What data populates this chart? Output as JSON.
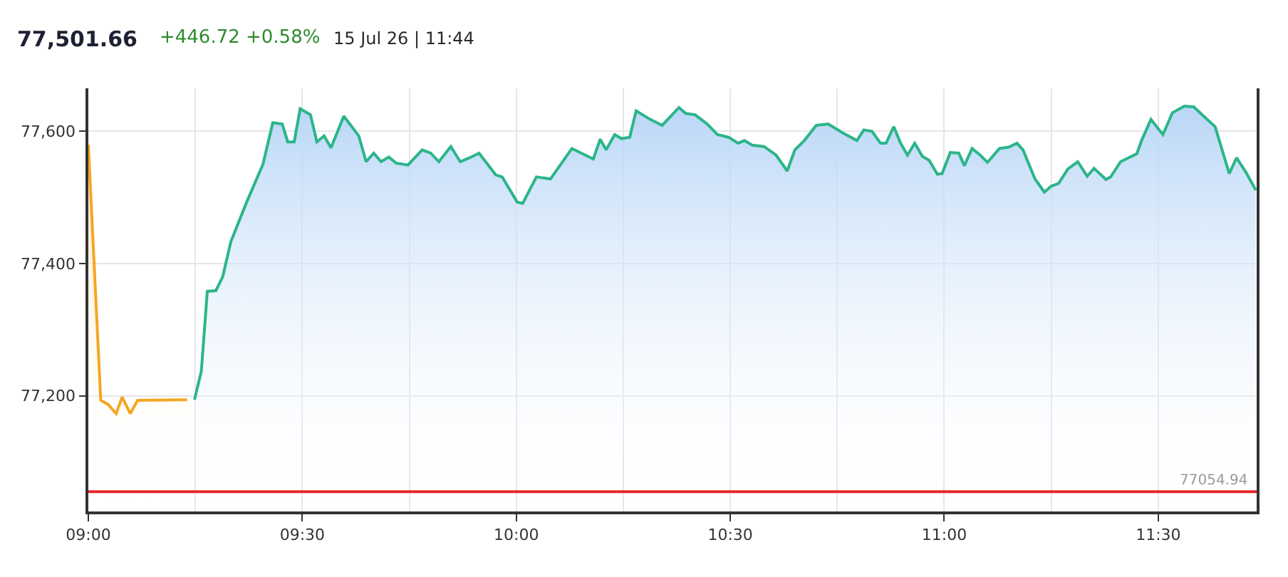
{
  "chart_data": {
    "type": "area",
    "title": "77,501.66",
    "subtitle": "+446.72 +0.58%",
    "annotations": [
      "15 Jul 26 | 11:44"
    ],
    "series": [
      {
        "color": "#f5a623",
        "x": [
          9.0,
          9.029,
          9.046,
          9.065,
          9.079,
          9.098,
          9.115,
          9.231
        ],
        "values": [
          77580,
          77193,
          77187,
          77173,
          77198,
          77173,
          77193,
          77194
        ]
      },
      {
        "color": "#2bb58a",
        "x": [
          9.248,
          9.264,
          9.278,
          9.298,
          9.314,
          9.333,
          9.37,
          9.408,
          9.431,
          9.453,
          9.466,
          9.481,
          9.495,
          9.519,
          9.534,
          9.551,
          9.567,
          9.597,
          9.632,
          9.649,
          9.667,
          9.684,
          9.702,
          9.719,
          9.747,
          9.78,
          9.8,
          9.819,
          9.847,
          9.869,
          9.891,
          9.913,
          9.952,
          9.967,
          10.002,
          10.015,
          10.047,
          10.08,
          10.13,
          10.18,
          10.196,
          10.21,
          10.23,
          10.246,
          10.265,
          10.28,
          10.313,
          10.341,
          10.38,
          10.396,
          10.418,
          10.446,
          10.47,
          10.496,
          10.518,
          10.533,
          10.551,
          10.579,
          10.607,
          10.633,
          10.651,
          10.673,
          10.701,
          10.729,
          10.762,
          10.796,
          10.812,
          10.831,
          10.851,
          10.864,
          10.882,
          10.898,
          10.914,
          10.931,
          10.949,
          10.965,
          10.984,
          10.995,
          11.014,
          11.034,
          11.047,
          11.065,
          11.084,
          11.101,
          11.129,
          11.151,
          11.17,
          11.184,
          11.212,
          11.234,
          11.25,
          11.267,
          11.289,
          11.312,
          11.334,
          11.35,
          11.378,
          11.389,
          11.412,
          11.45,
          11.461,
          11.483,
          11.511,
          11.533,
          11.561,
          11.583,
          11.606,
          11.633,
          11.666,
          11.683,
          11.705,
          11.728
        ],
        "values": [
          77194,
          77237,
          77358,
          77359,
          77380,
          77433,
          77493,
          77550,
          77613,
          77611,
          77584,
          77584,
          77634,
          77625,
          77584,
          77593,
          77575,
          77623,
          77593,
          77554,
          77567,
          77554,
          77561,
          77552,
          77549,
          77572,
          77567,
          77554,
          77577,
          77554,
          77560,
          77567,
          77534,
          77531,
          77493,
          77491,
          77531,
          77528,
          77574,
          77558,
          77588,
          77572,
          77595,
          77589,
          77591,
          77631,
          77618,
          77609,
          77636,
          77627,
          77625,
          77611,
          77595,
          77591,
          77582,
          77586,
          77579,
          77577,
          77564,
          77540,
          77572,
          77586,
          77609,
          77611,
          77598,
          77586,
          77602,
          77600,
          77582,
          77582,
          77607,
          77582,
          77564,
          77582,
          77562,
          77556,
          77535,
          77536,
          77568,
          77567,
          77548,
          77574,
          77564,
          77553,
          77574,
          77576,
          77582,
          77572,
          77528,
          77508,
          77517,
          77521,
          77543,
          77554,
          77532,
          77544,
          77527,
          77531,
          77554,
          77566,
          77586,
          77618,
          77595,
          77628,
          77638,
          77637,
          77623,
          77607,
          77536,
          77560,
          77538,
          77511
        ]
      }
    ],
    "xlim": [
      9,
      11.73
    ],
    "xticks": [
      {
        "value": 9,
        "label": "09:00"
      },
      {
        "value": 9.25,
        "label": null
      },
      {
        "value": 9.5,
        "label": "09:30"
      },
      {
        "value": 9.75,
        "label": null
      },
      {
        "value": 10,
        "label": "10:00"
      },
      {
        "value": 10.25,
        "label": null
      },
      {
        "value": 10.5,
        "label": "10:30"
      },
      {
        "value": 10.75,
        "label": null
      },
      {
        "value": 11,
        "label": "11:00"
      },
      {
        "value": 11.25,
        "label": null
      },
      {
        "value": 11.5,
        "label": "11:30"
      }
    ],
    "ylim": [
      77025,
      77665
    ],
    "yticks": [
      {
        "value": 77200,
        "label": "77,200"
      },
      {
        "value": 77400,
        "label": "77,400"
      },
      {
        "value": 77600,
        "label": "77,600"
      }
    ],
    "grid": true,
    "ref_lines": [
      {
        "axis": "y",
        "value": 77054.94,
        "label": "77054.94",
        "color": "#e8262a"
      }
    ]
  }
}
